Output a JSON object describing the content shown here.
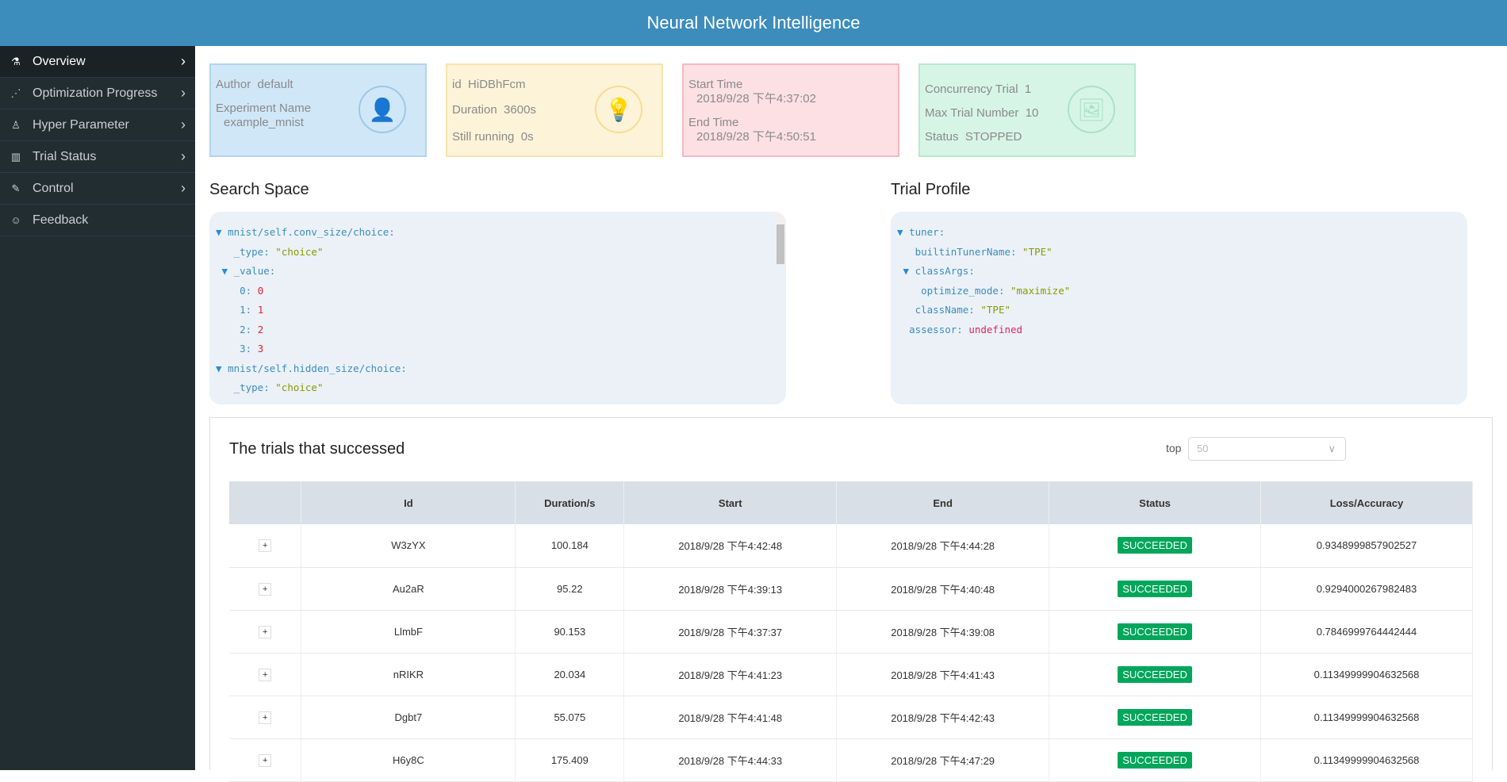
{
  "header": {
    "title": "Neural Network Intelligence"
  },
  "sidebar": {
    "items": [
      {
        "label": "Overview",
        "icon": "flask-icon",
        "glyph": "⚗",
        "active": true
      },
      {
        "label": "Optimization Progress",
        "icon": "scatter-chart-icon",
        "glyph": "⋰",
        "active": false
      },
      {
        "label": "Hyper Parameter",
        "icon": "rocket-icon",
        "glyph": "♙",
        "active": false
      },
      {
        "label": "Trial Status",
        "icon": "bar-chart-icon",
        "glyph": "▥",
        "active": false
      },
      {
        "label": "Control",
        "icon": "edit-icon",
        "glyph": "✎",
        "active": false
      },
      {
        "label": "Feedback",
        "icon": "smile-icon",
        "glyph": "☺",
        "active": false
      }
    ]
  },
  "cards": {
    "author": {
      "label": "Author",
      "value": "default",
      "exp_label": "Experiment Name",
      "exp_value": "example_mnist"
    },
    "id": {
      "label": "id",
      "value": "HiDBhFcm",
      "duration_label": "Duration",
      "duration": "3600s",
      "running_label": "Still running",
      "running": "0s"
    },
    "time": {
      "start_label": "Start Time",
      "start": "2018/9/28 下午4:37:02",
      "end_label": "End Time",
      "end": "2018/9/28 下午4:50:51"
    },
    "trial": {
      "concurrency_label": "Concurrency Trial",
      "concurrency": "1",
      "max_label": "Max Trial Number",
      "max": "10",
      "status_label": "Status",
      "status": "STOPPED"
    }
  },
  "search_space": {
    "title": "Search Space"
  },
  "trial_profile": {
    "title": "Trial Profile"
  },
  "trials": {
    "title": "The trials that successed",
    "top_label": "top",
    "top_value": "50",
    "columns": [
      "",
      "Id",
      "Duration/s",
      "Start",
      "End",
      "Status",
      "Loss/Accuracy"
    ],
    "rows": [
      [
        "+",
        "W3zYX",
        "100.184",
        "2018/9/28 下午4:42:48",
        "2018/9/28 下午4:44:28",
        "SUCCEEDED",
        "0.9348999857902527"
      ],
      [
        "+",
        "Au2aR",
        "95.22",
        "2018/9/28 下午4:39:13",
        "2018/9/28 下午4:40:48",
        "SUCCEEDED",
        "0.9294000267982483"
      ],
      [
        "+",
        "LlmbF",
        "90.153",
        "2018/9/28 下午4:37:37",
        "2018/9/28 下午4:39:08",
        "SUCCEEDED",
        "0.7846999764442444"
      ],
      [
        "+",
        "nRIKR",
        "20.034",
        "2018/9/28 下午4:41:23",
        "2018/9/28 下午4:41:43",
        "SUCCEEDED",
        "0.11349999904632568"
      ],
      [
        "+",
        "Dgbt7",
        "55.075",
        "2018/9/28 下午4:41:48",
        "2018/9/28 下午4:42:43",
        "SUCCEEDED",
        "0.11349999904632568"
      ],
      [
        "+",
        "H6y8C",
        "175.409",
        "2018/9/28 下午4:44:33",
        "2018/9/28 下午4:47:29",
        "SUCCEEDED",
        "0.11349999904632568"
      ]
    ]
  },
  "colors": {
    "header": "#3c8dbc",
    "sidebar": "#222d32",
    "success": "#00a65a"
  }
}
